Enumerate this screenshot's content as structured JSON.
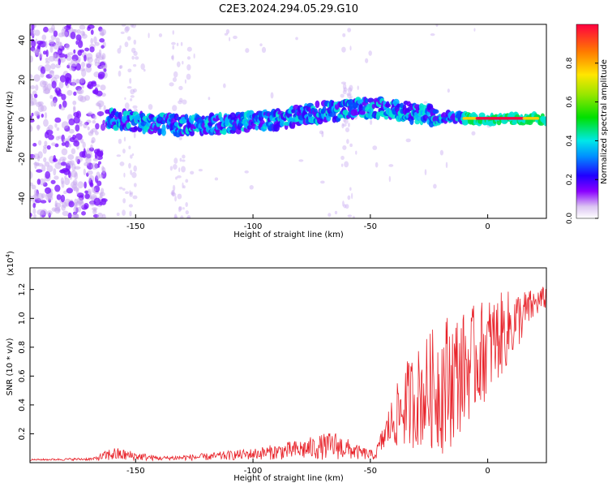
{
  "title": "C2E3.2024.294.05.29.G10",
  "chart_data": [
    {
      "type": "heatmap",
      "xlabel": "Height of straight line (km)",
      "ylabel": "Frequency (Hz)",
      "xlim": [
        -195,
        25
      ],
      "ylim": [
        -50,
        48
      ],
      "x_ticks": [
        -150,
        -100,
        -50,
        0
      ],
      "y_ticks": [
        -40,
        -20,
        0,
        20,
        40
      ],
      "colorbar": {
        "label": "Normalized spectral amplitude",
        "range": [
          0,
          1
        ],
        "ticks": [
          "0.0",
          "0.2",
          "0.4",
          "0.6",
          "0.8"
        ]
      },
      "ridge": [
        {
          "x": -160,
          "freq": 0
        },
        {
          "x": -130,
          "freq": -3
        },
        {
          "x": -110,
          "freq": -2
        },
        {
          "x": -90,
          "freq": 0
        },
        {
          "x": -75,
          "freq": 3
        },
        {
          "x": -60,
          "freq": 5
        },
        {
          "x": -45,
          "freq": 6
        },
        {
          "x": -35,
          "freq": 4
        },
        {
          "x": -25,
          "freq": 2
        },
        {
          "x": -15,
          "freq": 1
        },
        {
          "x": 0,
          "freq": 0
        },
        {
          "x": 25,
          "freq": 0
        }
      ]
    },
    {
      "type": "line",
      "xlabel": "Height of straight line (km)",
      "ylabel": "SNR (10 * v/v)",
      "y_multiplier": "(x10",
      "y_multiplier_exp": "4",
      "y_multiplier_close": ")",
      "xlim": [
        -195,
        25
      ],
      "ylim": [
        0,
        1.35
      ],
      "x_ticks": [
        -150,
        -100,
        -50,
        0
      ],
      "y_ticks": [
        "0.2",
        "0.4",
        "0.6",
        "0.8",
        "1.0",
        "1.2"
      ],
      "line_color": "#e8232a",
      "envelope": [
        {
          "x": -195,
          "mean": 0.02,
          "amp": 0.005
        },
        {
          "x": -168,
          "mean": 0.025,
          "amp": 0.01
        },
        {
          "x": -160,
          "mean": 0.06,
          "amp": 0.05
        },
        {
          "x": -140,
          "mean": 0.03,
          "amp": 0.015
        },
        {
          "x": -120,
          "mean": 0.04,
          "amp": 0.025
        },
        {
          "x": -100,
          "mean": 0.06,
          "amp": 0.04
        },
        {
          "x": -80,
          "mean": 0.09,
          "amp": 0.07
        },
        {
          "x": -65,
          "mean": 0.12,
          "amp": 0.1
        },
        {
          "x": -55,
          "mean": 0.07,
          "amp": 0.05
        },
        {
          "x": -48,
          "mean": 0.05,
          "amp": 0.03
        },
        {
          "x": -42,
          "mean": 0.25,
          "amp": 0.15
        },
        {
          "x": -35,
          "mean": 0.4,
          "amp": 0.3
        },
        {
          "x": -25,
          "mean": 0.5,
          "amp": 0.4
        },
        {
          "x": -18,
          "mean": 0.55,
          "amp": 0.5
        },
        {
          "x": -10,
          "mean": 0.65,
          "amp": 0.4
        },
        {
          "x": 0,
          "mean": 0.8,
          "amp": 0.35
        },
        {
          "x": 10,
          "mean": 0.95,
          "amp": 0.25
        },
        {
          "x": 20,
          "mean": 1.1,
          "amp": 0.1
        },
        {
          "x": 25,
          "mean": 1.15,
          "amp": 0.08
        }
      ]
    }
  ]
}
